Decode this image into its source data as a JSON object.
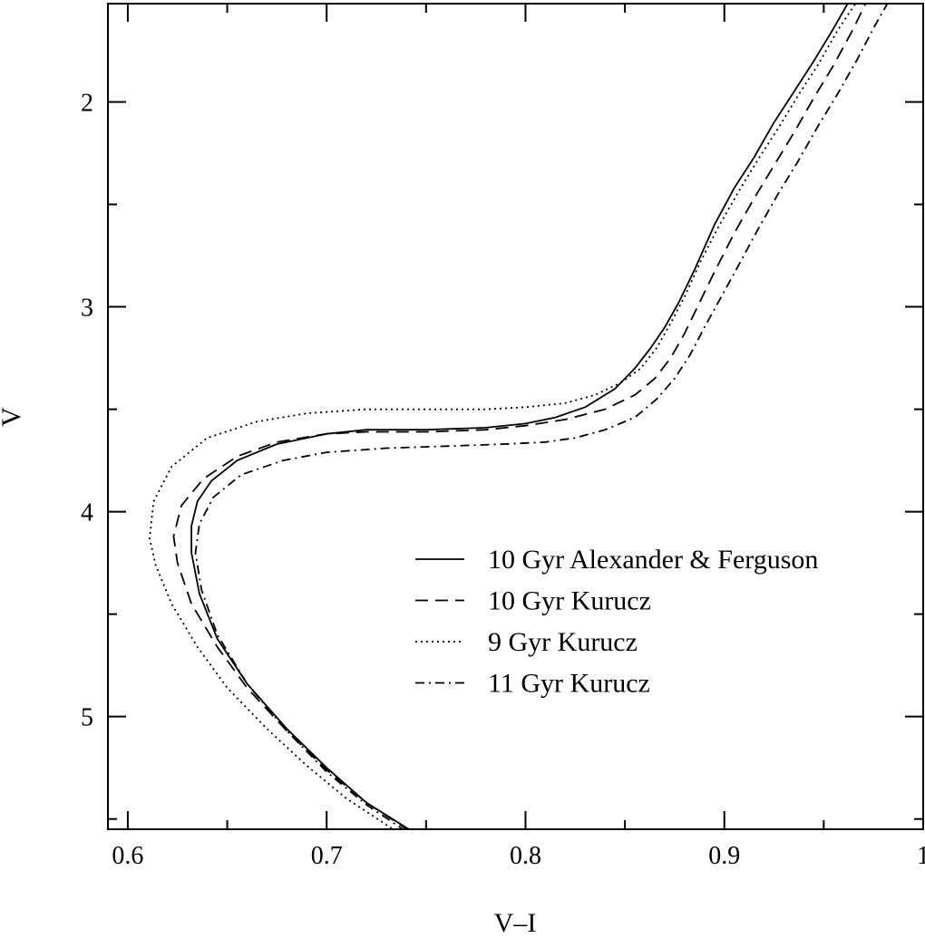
{
  "chart_data": {
    "type": "line",
    "xlabel": "V–I",
    "ylabel": "V",
    "xlim": [
      0.59,
      1.0
    ],
    "ylim": [
      5.55,
      1.52
    ],
    "y_inverted": true,
    "x_major_ticks": [
      0.6,
      0.7,
      0.8,
      0.9,
      1.0
    ],
    "x_tick_labels": [
      "0.6",
      "0.7",
      "0.8",
      "0.9",
      "1"
    ],
    "x_minor_ticks": [
      0.65,
      0.75,
      0.85,
      0.95
    ],
    "y_major_ticks": [
      2,
      3,
      4,
      5
    ],
    "y_tick_labels": [
      "2",
      "3",
      "4",
      "5"
    ],
    "y_minor_ticks": [
      2.5,
      3.5,
      4.5,
      5.5
    ],
    "grid": false,
    "legend": "lower-right",
    "series": [
      {
        "name": "10 Gyr Alexander & Ferguson",
        "dash": "solid",
        "x": [
          0.743,
          0.72,
          0.7,
          0.68,
          0.66,
          0.645,
          0.636,
          0.632,
          0.632,
          0.635,
          0.642,
          0.655,
          0.675,
          0.7,
          0.72,
          0.75,
          0.78,
          0.8,
          0.815,
          0.83,
          0.845,
          0.855,
          0.863,
          0.87,
          0.877,
          0.885,
          0.895,
          0.905,
          0.915,
          0.925,
          0.935,
          0.945,
          0.955,
          0.962
        ],
        "y": [
          5.56,
          5.42,
          5.25,
          5.06,
          4.84,
          4.62,
          4.4,
          4.2,
          4.07,
          3.95,
          3.85,
          3.75,
          3.67,
          3.62,
          3.6,
          3.6,
          3.59,
          3.57,
          3.54,
          3.49,
          3.4,
          3.3,
          3.2,
          3.1,
          2.98,
          2.82,
          2.6,
          2.42,
          2.27,
          2.1,
          1.95,
          1.8,
          1.64,
          1.52
        ]
      },
      {
        "name": "10 Gyr Kurucz",
        "dash": "long-dash",
        "x": [
          0.742,
          0.72,
          0.7,
          0.68,
          0.66,
          0.645,
          0.632,
          0.625,
          0.623,
          0.627,
          0.638,
          0.655,
          0.675,
          0.7,
          0.72,
          0.75,
          0.78,
          0.8,
          0.82,
          0.84,
          0.855,
          0.865,
          0.873,
          0.88,
          0.887,
          0.895,
          0.905,
          0.915,
          0.925,
          0.935,
          0.945,
          0.955,
          0.965,
          0.971
        ],
        "y": [
          5.56,
          5.42,
          5.26,
          5.07,
          4.86,
          4.66,
          4.45,
          4.25,
          4.12,
          3.97,
          3.84,
          3.73,
          3.66,
          3.62,
          3.61,
          3.61,
          3.6,
          3.58,
          3.55,
          3.5,
          3.43,
          3.35,
          3.25,
          3.13,
          2.99,
          2.83,
          2.64,
          2.47,
          2.31,
          2.15,
          1.98,
          1.82,
          1.64,
          1.52
        ]
      },
      {
        "name": "9 Gyr Kurucz",
        "dash": "dotted",
        "x": [
          0.735,
          0.71,
          0.69,
          0.67,
          0.65,
          0.635,
          0.622,
          0.614,
          0.611,
          0.613,
          0.622,
          0.64,
          0.665,
          0.69,
          0.72,
          0.75,
          0.78,
          0.8,
          0.82,
          0.835,
          0.848,
          0.858,
          0.866,
          0.873,
          0.88,
          0.888,
          0.897,
          0.907,
          0.917,
          0.927,
          0.937,
          0.947,
          0.957,
          0.966
        ],
        "y": [
          5.56,
          5.4,
          5.24,
          5.06,
          4.86,
          4.66,
          4.45,
          4.26,
          4.13,
          3.95,
          3.78,
          3.64,
          3.56,
          3.52,
          3.5,
          3.5,
          3.5,
          3.49,
          3.47,
          3.43,
          3.37,
          3.3,
          3.2,
          3.08,
          2.95,
          2.78,
          2.61,
          2.44,
          2.28,
          2.13,
          1.97,
          1.82,
          1.65,
          1.52
        ]
      },
      {
        "name": "11 Gyr Kurucz",
        "dash": "dash-dot",
        "x": [
          0.74,
          0.72,
          0.7,
          0.68,
          0.66,
          0.645,
          0.637,
          0.634,
          0.636,
          0.643,
          0.657,
          0.678,
          0.7,
          0.73,
          0.76,
          0.79,
          0.81,
          0.825,
          0.84,
          0.855,
          0.866,
          0.875,
          0.883,
          0.89,
          0.898,
          0.907,
          0.917,
          0.927,
          0.937,
          0.947,
          0.957,
          0.967,
          0.975,
          0.982
        ],
        "y": [
          5.56,
          5.43,
          5.27,
          5.07,
          4.84,
          4.6,
          4.38,
          4.2,
          4.06,
          3.93,
          3.82,
          3.75,
          3.71,
          3.69,
          3.68,
          3.67,
          3.66,
          3.64,
          3.6,
          3.54,
          3.45,
          3.35,
          3.23,
          3.1,
          2.96,
          2.8,
          2.62,
          2.45,
          2.29,
          2.12,
          1.96,
          1.79,
          1.64,
          1.52
        ]
      }
    ]
  }
}
